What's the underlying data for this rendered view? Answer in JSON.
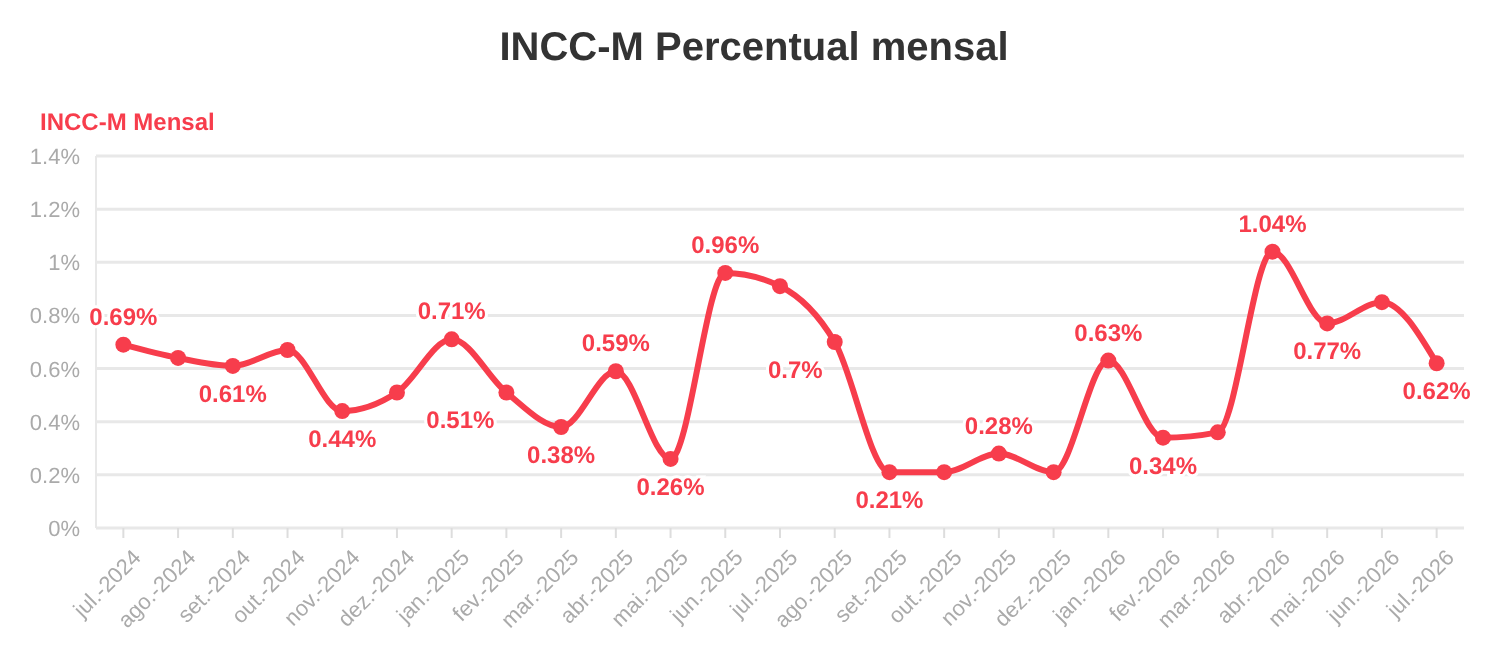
{
  "chart_data": {
    "type": "line",
    "title": "INCC-M Percentual mensal",
    "subtitle": "INCC-M Mensal",
    "categories": [
      "jul.-2024",
      "ago.-2024",
      "set.-2024",
      "out.-2024",
      "nov.-2024",
      "dez.-2024",
      "jan.-2025",
      "fev.-2025",
      "mar.-2025",
      "abr.-2025",
      "mai.-2025",
      "jun.-2025",
      "jul.-2025",
      "ago.-2025",
      "set.-2025",
      "out.-2025",
      "nov.-2025",
      "dez.-2025",
      "jan.-2026",
      "fev.-2026",
      "mar.-2026",
      "abr.-2026",
      "mai.-2026",
      "jun.-2026",
      "jul.-2026"
    ],
    "series": [
      {
        "color": "#f73d4c",
        "values": [
          0.69,
          0.64,
          0.61,
          0.67,
          0.44,
          0.51,
          0.71,
          0.51,
          0.38,
          0.59,
          0.26,
          0.96,
          0.91,
          0.7,
          0.21,
          0.21,
          0.28,
          0.21,
          0.63,
          0.34,
          0.36,
          1.04,
          0.77,
          0.85,
          0.62
        ],
        "value_labels": [
          "0.69%",
          null,
          "0.61%",
          null,
          "0.44%",
          null,
          "0.71%",
          "0.51%",
          "0.38%",
          "0.59%",
          "0.26%",
          "0.96%",
          null,
          "0.7%",
          "0.21%",
          null,
          "0.28%",
          null,
          "0.63%",
          "0.34%",
          null,
          "1.04%",
          "0.77%",
          null,
          "0.62%"
        ]
      }
    ],
    "ylim": [
      0,
      1.4
    ],
    "yticks": [
      {
        "value": 0,
        "label": "0%"
      },
      {
        "value": 0.2,
        "label": "0.2%"
      },
      {
        "value": 0.4,
        "label": "0.4%"
      },
      {
        "value": 0.6,
        "label": "0.6%"
      },
      {
        "value": 0.8,
        "label": "0.8%"
      },
      {
        "value": 1,
        "label": "1%"
      },
      {
        "value": 1.2,
        "label": "1.2%"
      },
      {
        "value": 1.4,
        "label": "1.4%"
      }
    ],
    "grid": "y",
    "marker": "circle",
    "line_style": "solid"
  }
}
